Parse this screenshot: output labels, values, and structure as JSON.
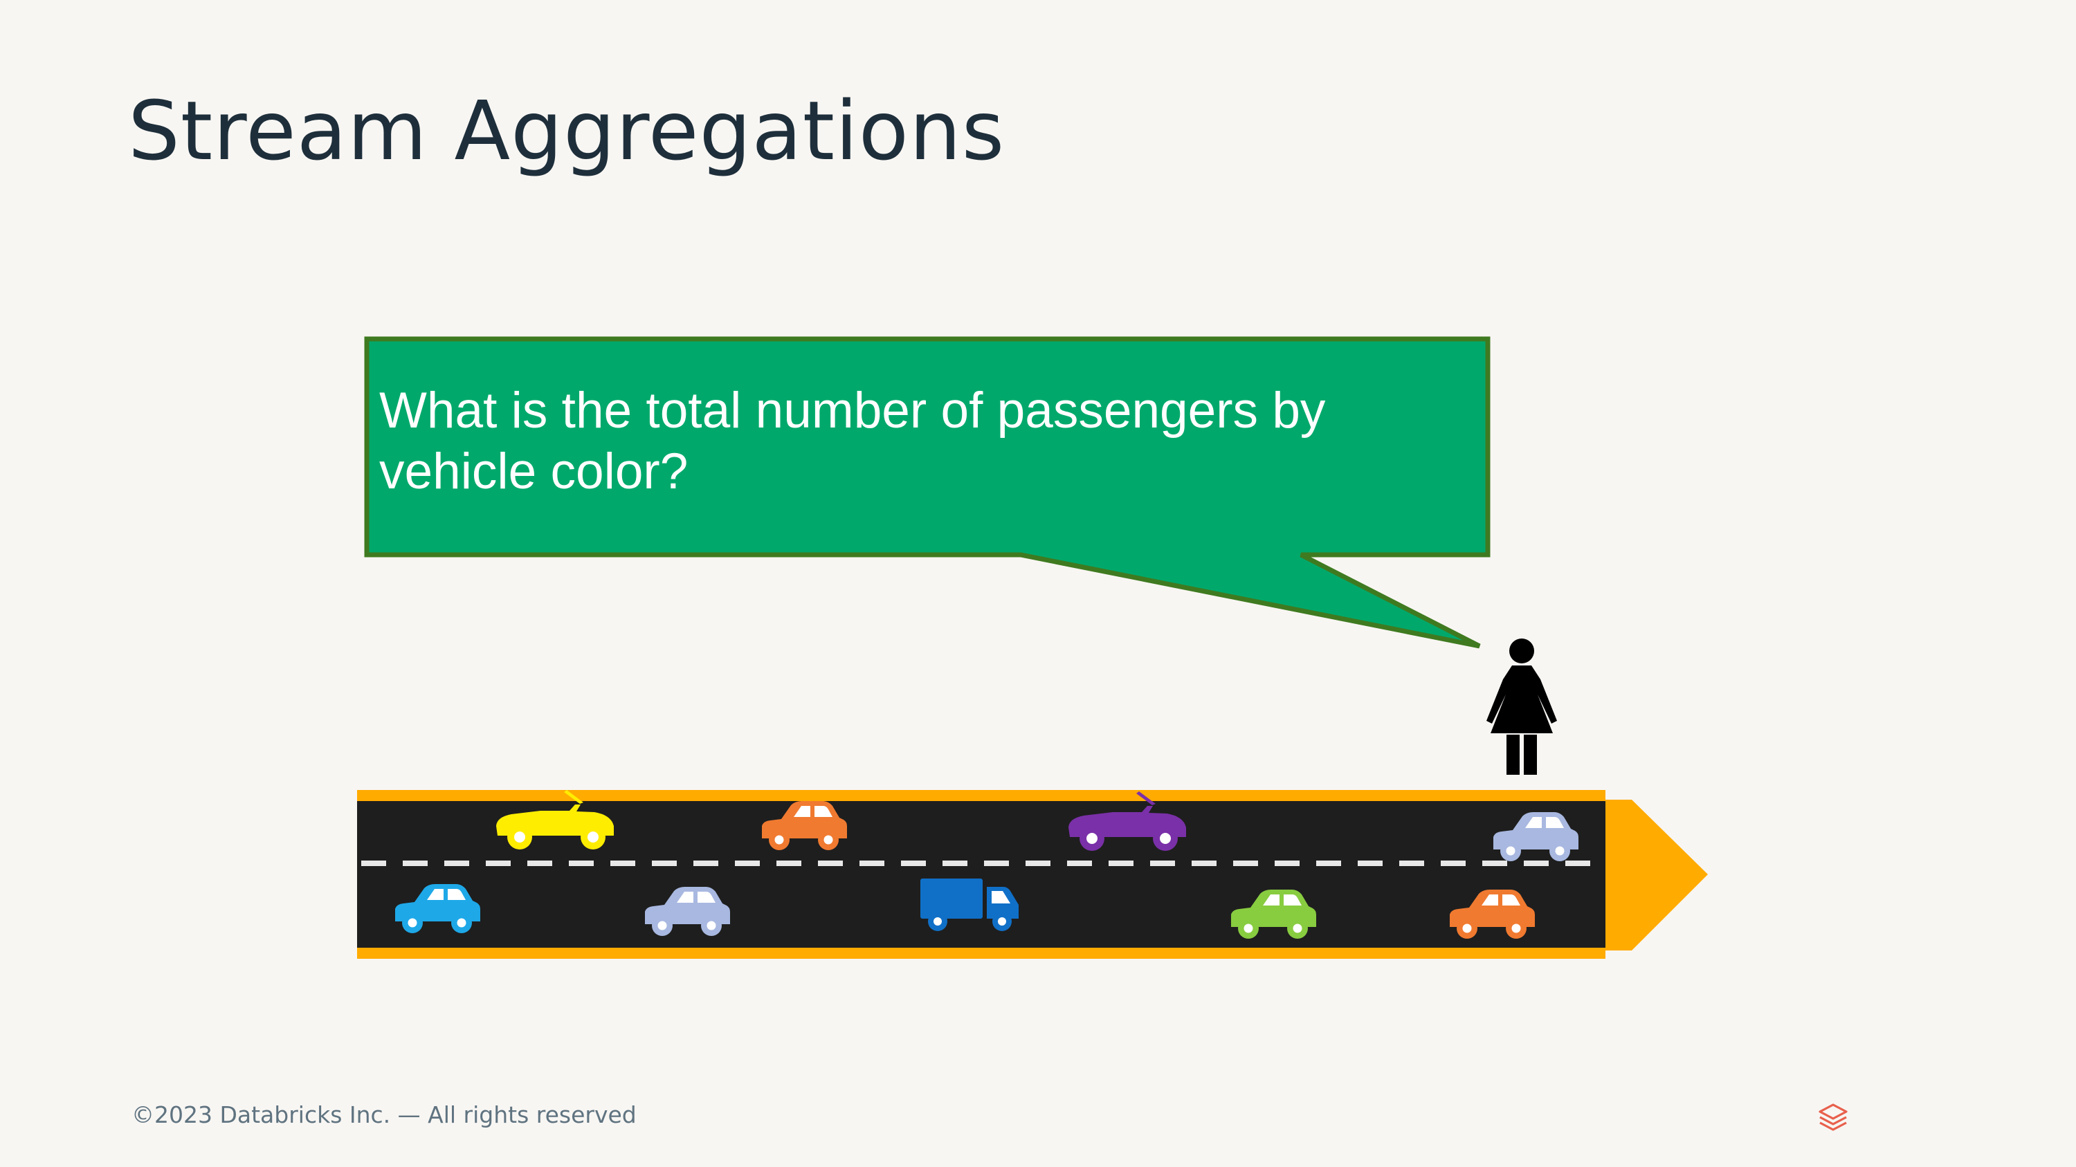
{
  "slide": {
    "title": "Stream Aggregations",
    "callout_text": "What is the total number of passengers by vehicle color?",
    "footer": "©2023 Databricks Inc. — All rights reserved"
  },
  "colors": {
    "background": "#f8f6f3",
    "title": "#1e2f3b",
    "callout_fill": "#00a96b",
    "callout_border": "#3f7a20",
    "road": "#1e1e1e",
    "road_edge": "#ffab00",
    "lane_marking": "#e8e8e8",
    "footer_text": "#5f7380",
    "logo": "#e8604c"
  },
  "scene": {
    "observer": "person-icon",
    "vehicles": [
      {
        "type": "convertible",
        "color": "#ffed00",
        "lane": "top"
      },
      {
        "type": "car",
        "color": "#f07a30",
        "lane": "top"
      },
      {
        "type": "convertible",
        "color": "#7a30a8",
        "lane": "top"
      },
      {
        "type": "car",
        "color": "#a8b8e0",
        "lane": "top"
      },
      {
        "type": "car",
        "color": "#1ea8e8",
        "lane": "bottom"
      },
      {
        "type": "car",
        "color": "#a8b8e0",
        "lane": "bottom"
      },
      {
        "type": "truck",
        "color": "#1070c8",
        "lane": "bottom"
      },
      {
        "type": "car",
        "color": "#88cc40",
        "lane": "bottom"
      },
      {
        "type": "car",
        "color": "#f07a30",
        "lane": "bottom"
      }
    ]
  }
}
